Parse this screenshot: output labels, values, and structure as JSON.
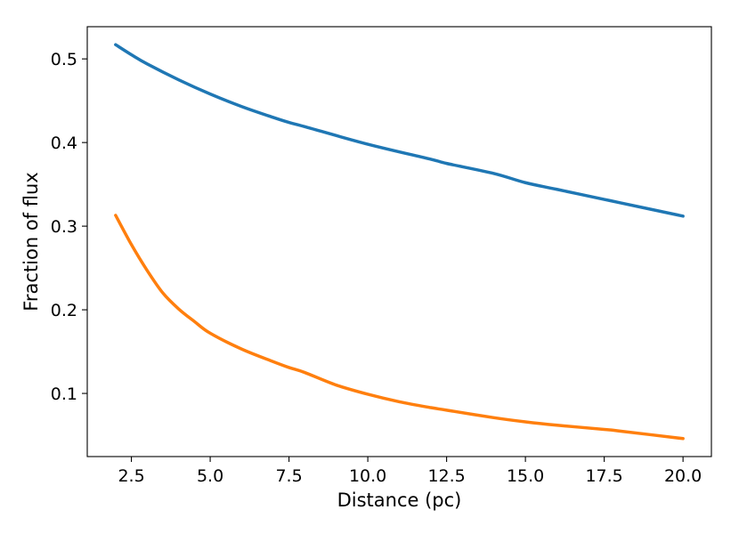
{
  "chart_data": {
    "type": "line",
    "title": "",
    "xlabel": "Distance (pc)",
    "ylabel": "Fraction of flux",
    "xlim": [
      1.1,
      20.9
    ],
    "ylim": [
      0.0245,
      0.5385
    ],
    "xticks": [
      2.5,
      5.0,
      7.5,
      10.0,
      12.5,
      15.0,
      17.5,
      20.0
    ],
    "xtick_labels": [
      "2.5",
      "5.0",
      "7.5",
      "10.0",
      "12.5",
      "15.0",
      "17.5",
      "20.0"
    ],
    "yticks": [
      0.1,
      0.2,
      0.3,
      0.4,
      0.5
    ],
    "ytick_labels": [
      "0.1",
      "0.2",
      "0.3",
      "0.4",
      "0.5"
    ],
    "grid": false,
    "legend": "none",
    "series": [
      {
        "color": "#1f77b4",
        "x": [
          2.0,
          2.5,
          3.0,
          4.0,
          5.0,
          6.0,
          7.0,
          7.5,
          8.0,
          10.0,
          12.0,
          12.5,
          14.0,
          15.0,
          16.0,
          17.5,
          18.0,
          20.0
        ],
        "y": [
          0.517,
          0.505,
          0.494,
          0.475,
          0.458,
          0.443,
          0.43,
          0.424,
          0.419,
          0.398,
          0.38,
          0.375,
          0.363,
          0.352,
          0.344,
          0.332,
          0.328,
          0.312
        ]
      },
      {
        "color": "#ff7f0e",
        "x": [
          2.0,
          2.5,
          3.0,
          3.5,
          4.0,
          4.5,
          5.0,
          6.0,
          7.0,
          7.5,
          8.0,
          9.0,
          10.0,
          11.0,
          12.0,
          12.5,
          14.0,
          15.0,
          16.0,
          17.5,
          18.0,
          20.0
        ],
        "y": [
          0.313,
          0.278,
          0.247,
          0.22,
          0.201,
          0.186,
          0.172,
          0.153,
          0.138,
          0.131,
          0.125,
          0.11,
          0.099,
          0.09,
          0.083,
          0.08,
          0.071,
          0.066,
          0.062,
          0.057,
          0.055,
          0.046
        ]
      }
    ]
  }
}
